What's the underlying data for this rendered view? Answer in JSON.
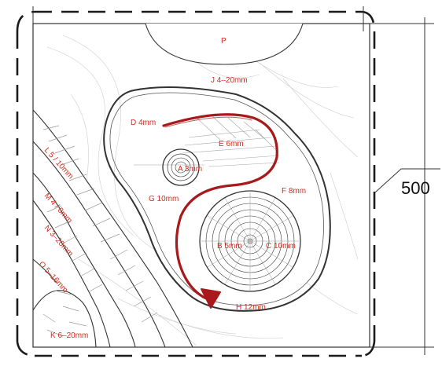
{
  "dimension": "500",
  "zones": {
    "P": "P",
    "J": "J 4–20mm",
    "D": "D 4mm",
    "E": "E 6mm",
    "A": "A 3mm",
    "F": "F 8mm",
    "G": "G 10mm",
    "B": "B 5mm",
    "C": "C 10mm",
    "H": "H 12mm",
    "L": "L 5 / 10mm",
    "M": "M 4 / 8mm",
    "N": "N 3–20mm",
    "O": "O 5–16mm",
    "K": "K 6–20mm"
  },
  "colors": {
    "label": "#e0281e",
    "arrow": "#a8191b",
    "ink": "#2a2a2a",
    "hatch": "#9a9a9a"
  }
}
